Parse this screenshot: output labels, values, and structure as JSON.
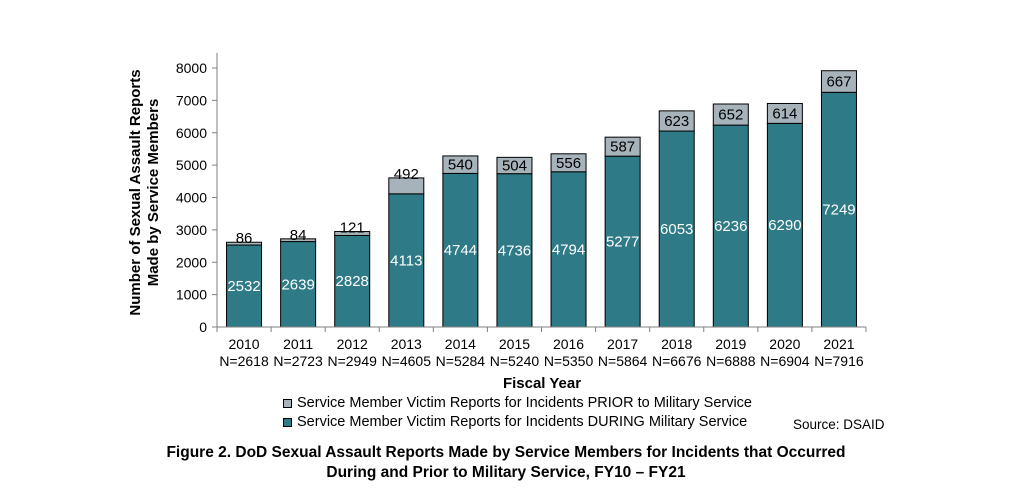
{
  "chart_data": {
    "type": "bar",
    "stacked": true,
    "title": "Figure 2.  DoD Sexual Assault Reports Made by Service Members for Incidents that Occurred During and Prior to Military Service, FY10 – FY21",
    "title_lines": [
      "Figure 2.  DoD Sexual Assault Reports Made by Service Members for Incidents that Occurred",
      "During and Prior to Military Service, FY10 – FY21"
    ],
    "xlabel": "Fiscal Year",
    "ylabel_lines": [
      "Number of Sexual Assault Reports",
      "Made by Service Members"
    ],
    "ylim": [
      0,
      8000
    ],
    "yticks": [
      0,
      1000,
      2000,
      3000,
      4000,
      5000,
      6000,
      7000,
      8000
    ],
    "categories": [
      "2010",
      "2011",
      "2012",
      "2013",
      "2014",
      "2015",
      "2016",
      "2017",
      "2018",
      "2019",
      "2020",
      "2021"
    ],
    "category_totals": [
      "N=2618",
      "N=2723",
      "N=2949",
      "N=4605",
      "N=5284",
      "N=5240",
      "N=5350",
      "N=5864",
      "N=6676",
      "N=6888",
      "N=6904",
      "N=7916"
    ],
    "series": [
      {
        "name": "Service Member Victim Reports for Incidents DURING Military Service",
        "color": "#2e7b87",
        "values": [
          2532,
          2639,
          2828,
          4113,
          4744,
          4736,
          4794,
          5277,
          6053,
          6236,
          6290,
          7249
        ]
      },
      {
        "name": "Service Member Victim Reports for Incidents PRIOR to Military Service",
        "color": "#a7b3ba",
        "values": [
          86,
          84,
          121,
          492,
          540,
          504,
          556,
          587,
          623,
          652,
          614,
          667
        ]
      }
    ],
    "legend_position": "bottom",
    "grid": false,
    "source": "Source: DSAID"
  }
}
